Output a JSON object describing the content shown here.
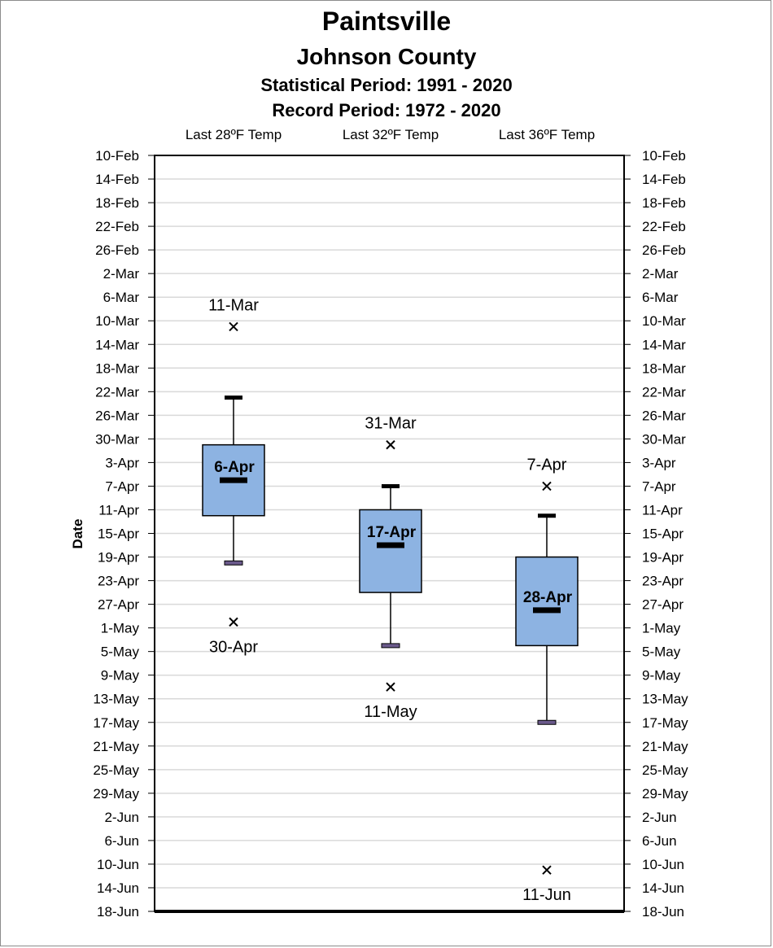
{
  "chart_data": {
    "type": "box",
    "title": "Paintsville",
    "subtitle": "Johnson County",
    "subtitle2": "Statistical Period: 1991 - 2020",
    "subtitle3": "Record Period: 1972 - 2020",
    "ylabel": "Date",
    "ylim": [
      "10-Feb",
      "18-Jun"
    ],
    "y_ticks": [
      "10-Feb",
      "14-Feb",
      "18-Feb",
      "22-Feb",
      "26-Feb",
      "2-Mar",
      "6-Mar",
      "10-Mar",
      "14-Mar",
      "18-Mar",
      "22-Mar",
      "26-Mar",
      "30-Mar",
      "3-Apr",
      "7-Apr",
      "11-Apr",
      "15-Apr",
      "19-Apr",
      "23-Apr",
      "27-Apr",
      "1-May",
      "5-May",
      "9-May",
      "13-May",
      "17-May",
      "21-May",
      "25-May",
      "29-May",
      "2-Jun",
      "6-Jun",
      "10-Jun",
      "14-Jun",
      "18-Jun"
    ],
    "grid": true,
    "categories": [
      "Last 28ºF Temp",
      "Last 32ºF Temp",
      "Last 36ºF Temp"
    ],
    "series": [
      {
        "whisker_low": "23-Mar",
        "q1": "31-Mar",
        "median": "6-Apr",
        "q3": "12-Apr",
        "whisker_high": "20-Apr",
        "median_label": "6-Apr",
        "record_early": "11-Mar",
        "record_early_label": "11-Mar",
        "record_late": "30-Apr",
        "record_late_label": "30-Apr"
      },
      {
        "whisker_low": "7-Apr",
        "q1": "11-Apr",
        "median": "17-Apr",
        "q3": "25-Apr",
        "whisker_high": "4-May",
        "median_label": "17-Apr",
        "record_early": "31-Mar",
        "record_early_label": "31-Mar",
        "record_late": "11-May",
        "record_late_label": "11-May"
      },
      {
        "whisker_low": "12-Apr",
        "q1": "19-Apr",
        "median": "28-Apr",
        "q3": "4-May",
        "whisker_high": "17-May",
        "median_label": "28-Apr",
        "record_early": "7-Apr",
        "record_early_label": "7-Apr",
        "record_late": "11-Jun",
        "record_late_label": "11-Jun"
      }
    ],
    "colors": {
      "box_fill": "#8db3e2",
      "box_stroke": "#000000",
      "grid": "#d9d9d9",
      "whisker_low_cap": "#6b5a8c"
    }
  }
}
